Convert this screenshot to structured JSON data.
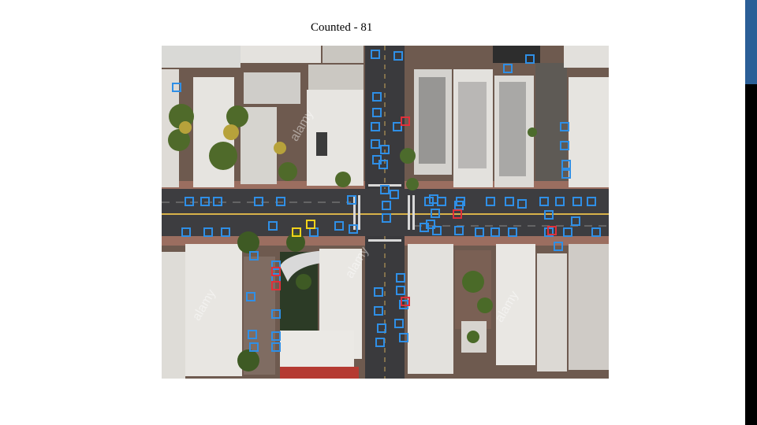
{
  "slide": {
    "title": "Counted - 81"
  },
  "image": {
    "watermark_text": "alamy",
    "watermark_mark": "a"
  },
  "detections": {
    "total": 81,
    "box_colors": {
      "car": "#2f8fe6",
      "flagged": "#e0303a",
      "highlight": "#f2d21a"
    }
  },
  "colors": {
    "accent_blue": "#2b5f97",
    "accent_black": "#000000"
  }
}
